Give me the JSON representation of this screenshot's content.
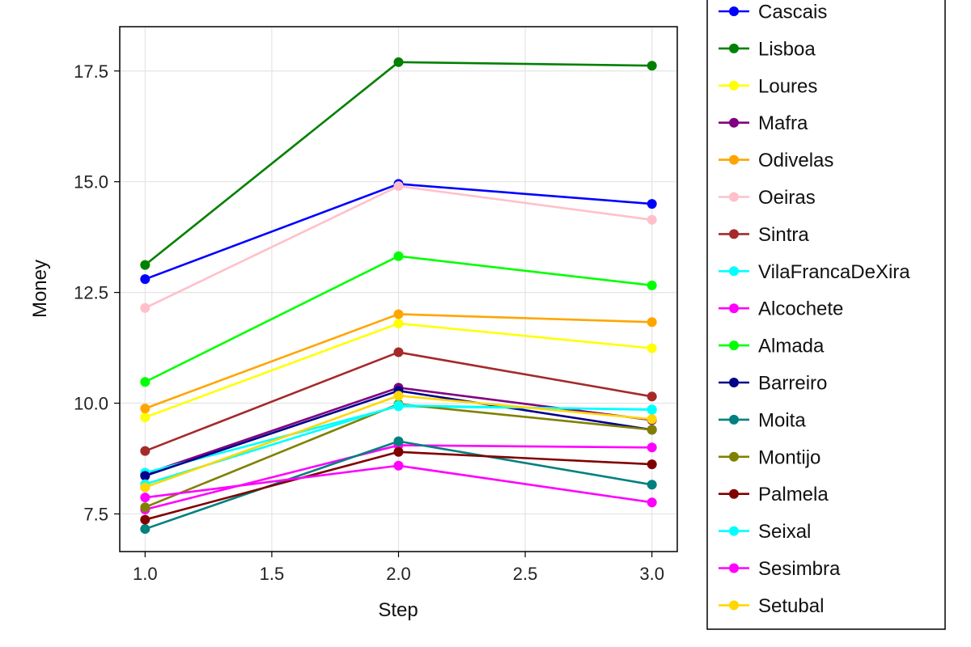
{
  "chart_data": {
    "type": "line",
    "title": "",
    "xlabel": "Step",
    "ylabel": "Money",
    "x": [
      1.0,
      2.0,
      3.0
    ],
    "xlim": [
      0.9,
      3.1
    ],
    "ylim": [
      6.65,
      18.5
    ],
    "xticks": [
      "1.0",
      "1.5",
      "2.0",
      "2.5",
      "3.0"
    ],
    "yticks": [
      "7.5",
      "10.0",
      "12.5",
      "15.0",
      "17.5"
    ],
    "grid": true,
    "legend_position": "right",
    "series": [
      {
        "name": "Cascais",
        "color": "#0000ff",
        "values": [
          12.8,
          14.95,
          14.5
        ]
      },
      {
        "name": "Lisboa",
        "color": "#008000",
        "values": [
          13.12,
          17.7,
          17.62
        ]
      },
      {
        "name": "Loures",
        "color": "#ffff00",
        "values": [
          9.68,
          11.8,
          11.24
        ]
      },
      {
        "name": "Mafra",
        "color": "#800080",
        "values": [
          8.4,
          10.35,
          9.62
        ]
      },
      {
        "name": "Odivelas",
        "color": "#ffa500",
        "values": [
          9.88,
          12.01,
          11.83
        ]
      },
      {
        "name": "Oeiras",
        "color": "#ffc0cb",
        "values": [
          12.15,
          14.9,
          14.14
        ]
      },
      {
        "name": "Sintra",
        "color": "#a52a2a",
        "values": [
          8.92,
          11.15,
          10.15
        ]
      },
      {
        "name": "VilaFrancaDeXira",
        "color": "#00ffff",
        "values": [
          8.43,
          9.93,
          9.86
        ]
      },
      {
        "name": "Alcochete",
        "color": "#ff00ff",
        "values": [
          7.6,
          9.05,
          9.0
        ]
      },
      {
        "name": "Almada",
        "color": "#00ff00",
        "values": [
          10.48,
          13.32,
          12.66
        ]
      },
      {
        "name": "Barreiro",
        "color": "#00008b",
        "values": [
          8.36,
          10.28,
          9.4
        ]
      },
      {
        "name": "Moita",
        "color": "#008080",
        "values": [
          7.16,
          9.14,
          8.16
        ]
      },
      {
        "name": "Montijo",
        "color": "#808000",
        "values": [
          7.65,
          9.98,
          9.4
        ]
      },
      {
        "name": "Palmela",
        "color": "#800000",
        "values": [
          7.37,
          8.9,
          8.62
        ]
      },
      {
        "name": "Seixal",
        "color": "#00ffff",
        "values": [
          8.17,
          9.95,
          9.85
        ]
      },
      {
        "name": "Sesimbra",
        "color": "#ff00ff",
        "values": [
          7.87,
          8.59,
          7.76
        ]
      },
      {
        "name": "Setubal",
        "color": "#ffd700",
        "values": [
          8.1,
          10.17,
          9.64
        ]
      }
    ]
  }
}
